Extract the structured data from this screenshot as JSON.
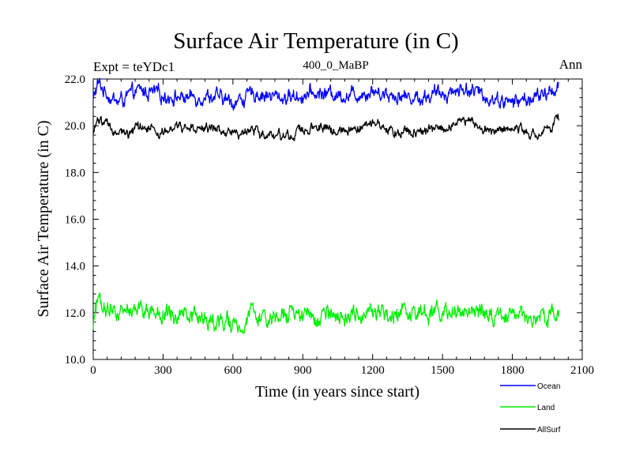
{
  "chart_data": {
    "type": "line",
    "title": "Surface Air Temperature (in C)",
    "subtitle_left": "Expt = teYDc1",
    "subtitle_center": "400_0_MaBP",
    "subtitle_right": "Ann",
    "xlabel": "Time (in years since start)",
    "ylabel": "Surface Air Temperature (in C)",
    "xlim": [
      0,
      2100
    ],
    "ylim": [
      10.0,
      22.0
    ],
    "x_ticks": [
      0,
      300,
      600,
      900,
      1200,
      1500,
      1800,
      2100
    ],
    "x_tick_labels": [
      "0",
      "300",
      "600",
      "900",
      "1200",
      "1500",
      "1800",
      "2100"
    ],
    "y_ticks": [
      10.0,
      12.0,
      14.0,
      16.0,
      18.0,
      20.0,
      22.0
    ],
    "y_tick_labels": [
      "10.0",
      "12.0",
      "14.0",
      "16.0",
      "18.0",
      "20.0",
      "22.0"
    ],
    "x_minor_step": 60,
    "y_minor_step": 0.4,
    "grid": false,
    "legend_position": "bottom-right, below plot",
    "series": [
      {
        "name": "Ocean",
        "color": "#0000ff",
        "x_start": 0,
        "x_end": 2000,
        "mean": 21.3,
        "amplitude": 0.5,
        "points": [
          [
            0,
            21.1
          ],
          [
            20,
            21.8
          ],
          [
            40,
            21.6
          ],
          [
            100,
            21.0
          ],
          [
            200,
            21.5
          ],
          [
            300,
            21.3
          ],
          [
            400,
            21.2
          ],
          [
            500,
            21.3
          ],
          [
            600,
            21.0
          ],
          [
            700,
            21.4
          ],
          [
            800,
            21.2
          ],
          [
            900,
            21.3
          ],
          [
            1000,
            21.4
          ],
          [
            1100,
            21.3
          ],
          [
            1200,
            21.5
          ],
          [
            1300,
            21.3
          ],
          [
            1400,
            21.2
          ],
          [
            1500,
            21.4
          ],
          [
            1600,
            21.6
          ],
          [
            1700,
            21.2
          ],
          [
            1800,
            21.0
          ],
          [
            1900,
            21.2
          ],
          [
            1960,
            21.4
          ],
          [
            2000,
            21.8
          ]
        ]
      },
      {
        "name": "Land",
        "color": "#00ee00",
        "x_start": 0,
        "x_end": 2000,
        "mean": 11.9,
        "amplitude": 0.6,
        "points": [
          [
            0,
            11.6
          ],
          [
            20,
            12.7
          ],
          [
            100,
            11.9
          ],
          [
            200,
            12.0
          ],
          [
            300,
            11.9
          ],
          [
            400,
            11.9
          ],
          [
            500,
            11.7
          ],
          [
            600,
            11.4
          ],
          [
            700,
            11.9
          ],
          [
            800,
            11.8
          ],
          [
            900,
            11.9
          ],
          [
            1000,
            11.9
          ],
          [
            1100,
            11.9
          ],
          [
            1200,
            12.1
          ],
          [
            1300,
            11.9
          ],
          [
            1400,
            11.9
          ],
          [
            1500,
            12.0
          ],
          [
            1600,
            12.2
          ],
          [
            1700,
            11.9
          ],
          [
            1800,
            11.9
          ],
          [
            1900,
            11.8
          ],
          [
            2000,
            12.0
          ]
        ]
      },
      {
        "name": "AllSurf",
        "color": "#000000",
        "x_start": 0,
        "x_end": 2000,
        "mean": 19.9,
        "amplitude": 0.35,
        "points": [
          [
            0,
            19.6
          ],
          [
            20,
            20.3
          ],
          [
            100,
            19.6
          ],
          [
            200,
            19.9
          ],
          [
            300,
            19.8
          ],
          [
            400,
            19.8
          ],
          [
            500,
            19.9
          ],
          [
            600,
            19.7
          ],
          [
            700,
            19.8
          ],
          [
            800,
            19.5
          ],
          [
            900,
            19.9
          ],
          [
            1000,
            19.9
          ],
          [
            1100,
            19.8
          ],
          [
            1200,
            20.1
          ],
          [
            1300,
            19.8
          ],
          [
            1400,
            19.7
          ],
          [
            1500,
            19.9
          ],
          [
            1600,
            20.2
          ],
          [
            1700,
            19.8
          ],
          [
            1800,
            19.9
          ],
          [
            1900,
            19.7
          ],
          [
            2000,
            20.2
          ]
        ]
      }
    ]
  }
}
